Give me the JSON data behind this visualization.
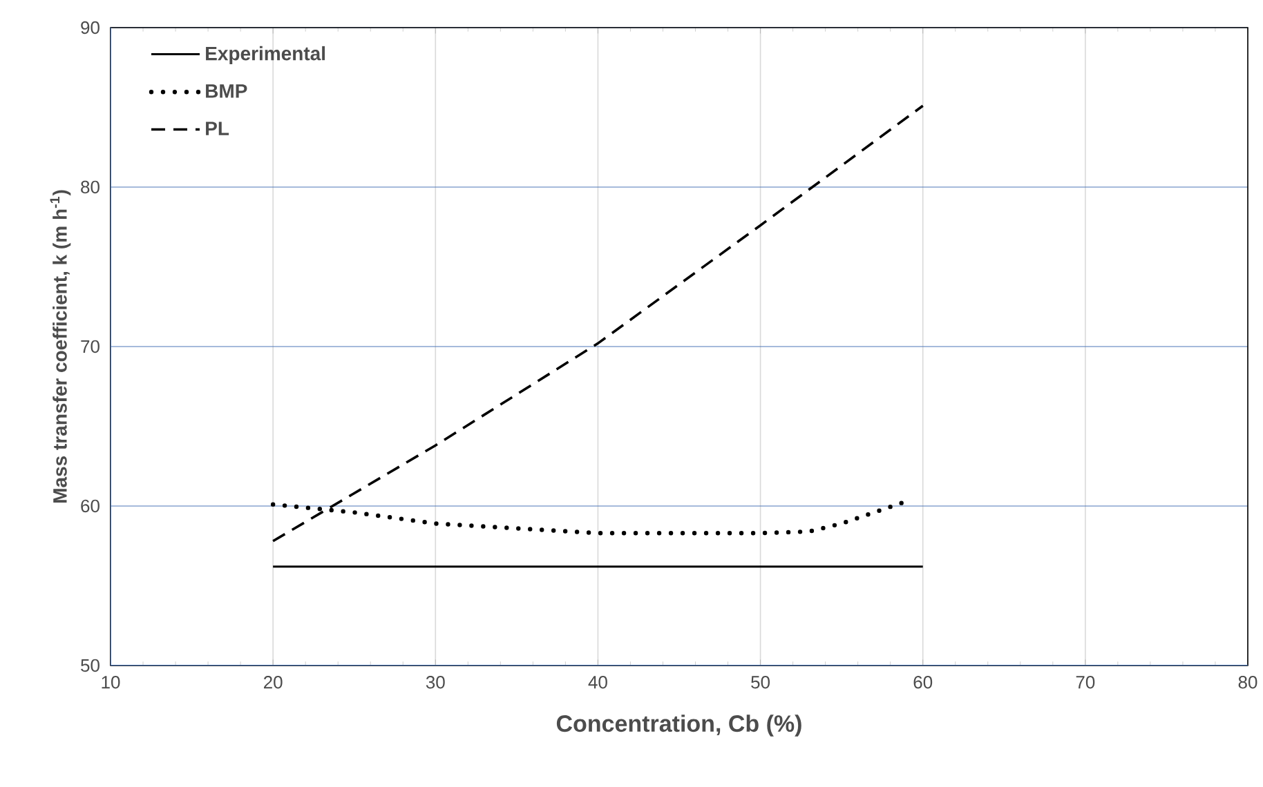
{
  "chart_data": {
    "type": "line",
    "xlabel": "Concentration, Cb (%)",
    "ylabel": "Mass transfer coefficient, k (m h$^{-1}$)",
    "xlim": [
      10,
      80
    ],
    "xticks": [
      10,
      20,
      30,
      40,
      50,
      60,
      70,
      80
    ],
    "ylim": [
      50,
      90
    ],
    "yticks": [
      50,
      60,
      70,
      80,
      90
    ],
    "grid": true,
    "legend": "top left",
    "marker": "none",
    "series": [
      {
        "name": "Experimental",
        "color": "#000000",
        "line_style": "solid",
        "x": [
          20,
          60
        ],
        "values": [
          56.2,
          56.2
        ]
      },
      {
        "name": "BMP",
        "color": "#000000",
        "line_style": "dotted",
        "x": [
          20,
          25,
          30,
          35,
          40,
          45,
          50,
          53,
          55,
          57,
          59
        ],
        "values": [
          60.1,
          59.6,
          58.9,
          58.6,
          58.3,
          58.3,
          58.3,
          58.4,
          58.9,
          59.6,
          60.3
        ]
      },
      {
        "name": "PL",
        "color": "#000000",
        "line_style": "dashed",
        "x": [
          20,
          30,
          40,
          50,
          60
        ],
        "values": [
          57.8,
          63.8,
          70.2,
          77.6,
          85.1
        ]
      }
    ]
  }
}
